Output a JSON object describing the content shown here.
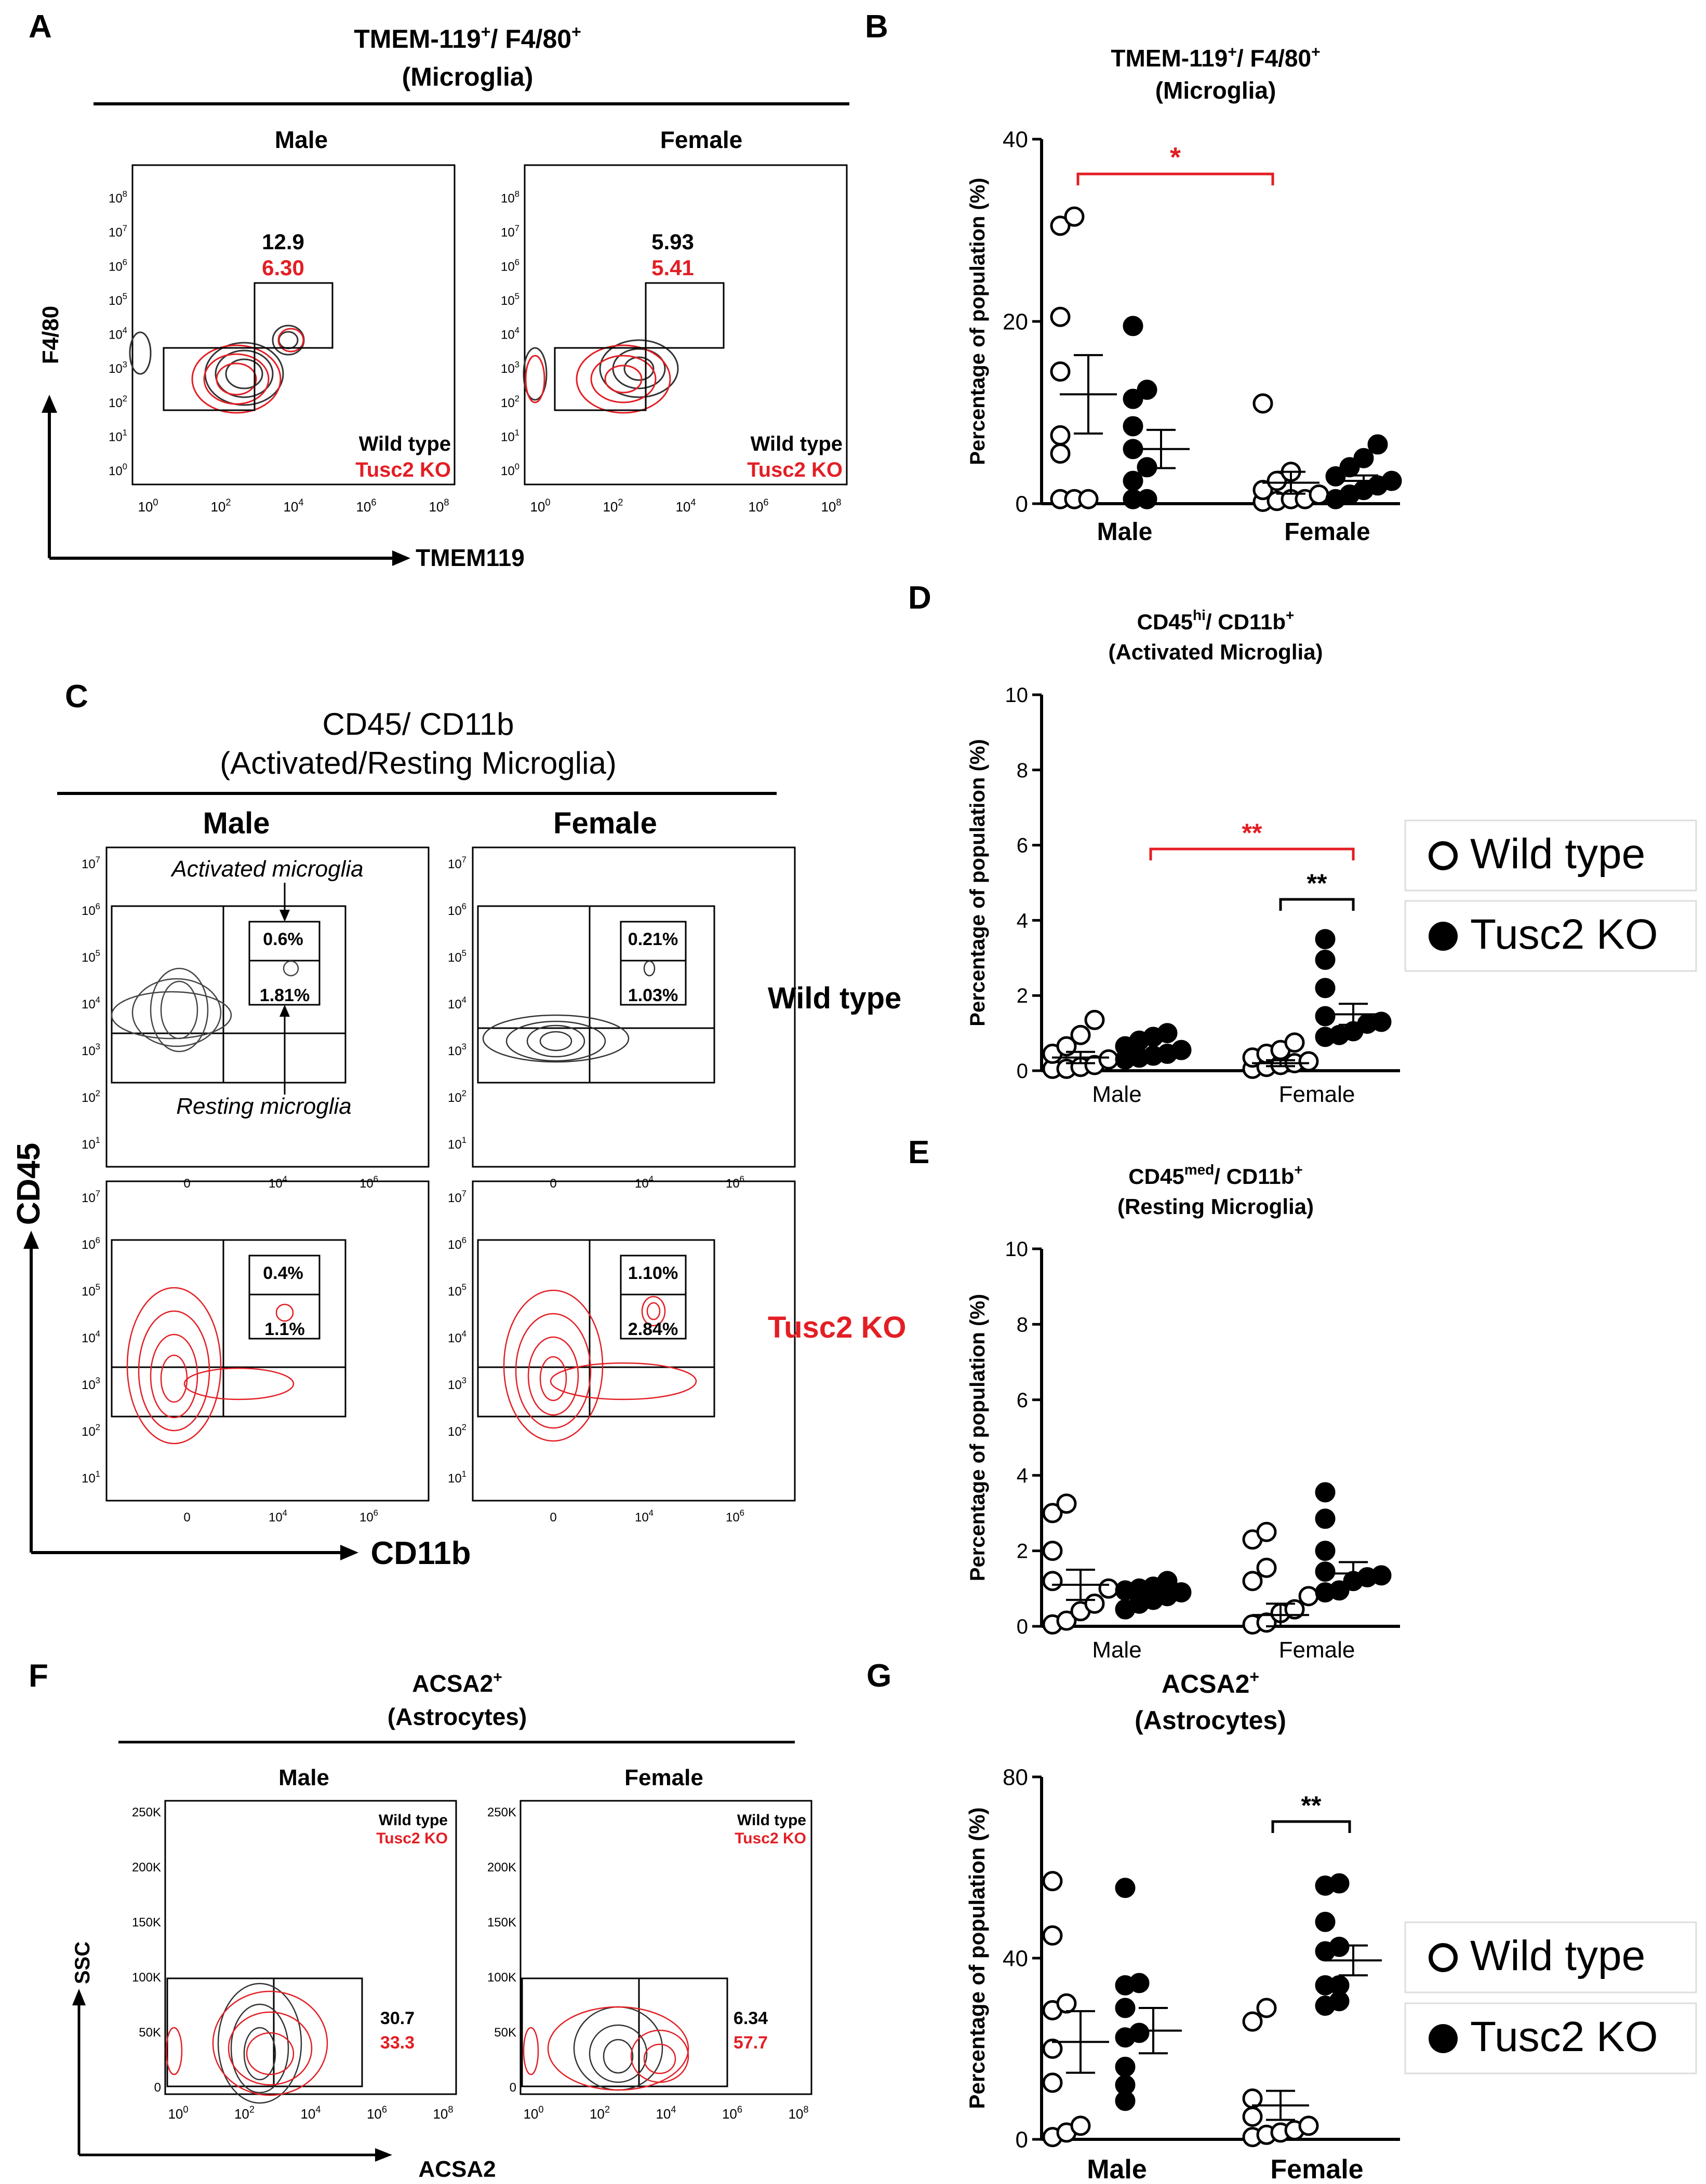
{
  "colors": {
    "wild_type": "#000000",
    "tusc2_ko": "#e31e24",
    "significance_red": "#e31e24",
    "significance_black": "#000000"
  },
  "legend": {
    "wild_type": "Wild type",
    "tusc2_ko": "Tusc2 KO"
  },
  "panels": {
    "A": {
      "letter": "A",
      "title_main": "TMEM-119",
      "title_sup1": "+",
      "title_mid": "/ F4/80",
      "title_sup2": "+",
      "subtitle": "(Microglia)",
      "male_label": "Male",
      "female_label": "Female",
      "xlabel": "TMEM119",
      "ylabel": "F4/80",
      "male_wt": "12.9",
      "male_ko": "6.30",
      "female_wt": "5.93",
      "female_ko": "5.41",
      "legend_wt": "Wild type",
      "legend_ko": "Tusc2 KO",
      "x_ticks": [
        "10",
        "10",
        "10",
        "10",
        "10"
      ],
      "x_tick_exps": [
        "0",
        "2",
        "4",
        "6",
        "8"
      ],
      "y_ticks": [
        "10",
        "10",
        "10",
        "10",
        "10",
        "10",
        "10",
        "10",
        "10"
      ],
      "y_tick_exps": [
        "0",
        "1",
        "2",
        "3",
        "4",
        "5",
        "6",
        "7",
        "8"
      ]
    },
    "C": {
      "letter": "C",
      "title": "CD45/ CD11b",
      "subtitle": "(Activated/Resting Microglia)",
      "male_label": "Male",
      "female_label": "Female",
      "row_wt": "Wild type",
      "row_ko": "Tusc2 KO",
      "xlabel": "CD11b",
      "ylabel": "CD45",
      "activated_label": "Activated microglia",
      "resting_label": "Resting microglia",
      "wt_male_top": "0.6%",
      "wt_male_bottom": "1.81%",
      "wt_female_top": "0.21%",
      "wt_female_bottom": "1.03%",
      "ko_male_top": "0.4%",
      "ko_male_bottom": "1.1%",
      "ko_female_top": "1.10%",
      "ko_female_bottom": "2.84%",
      "x_ticks": [
        "0",
        "10",
        "10"
      ],
      "x_tick_exps": [
        "",
        "4",
        "6"
      ],
      "y_ticks": [
        "10",
        "10",
        "10",
        "10",
        "10",
        "10",
        "10"
      ],
      "y_tick_exps": [
        "1",
        "2",
        "3",
        "4",
        "5",
        "6",
        "7"
      ]
    },
    "F": {
      "letter": "F",
      "title": "ACSA2",
      "title_sup": "+",
      "subtitle": "(Astrocytes)",
      "male_label": "Male",
      "female_label": "Female",
      "xlabel": "ACSA2",
      "ylabel": "SSC",
      "male_wt": "30.7",
      "male_ko": "33.3",
      "female_wt": "6.34",
      "female_ko": "57.7",
      "legend_wt": "Wild type",
      "legend_ko": "Tusc2 KO",
      "y_ticks": [
        "0",
        "50K",
        "100K",
        "150K",
        "200K",
        "250K"
      ],
      "x_ticks": [
        "10",
        "10",
        "10",
        "10",
        "10"
      ],
      "x_tick_exps": [
        "0",
        "2",
        "4",
        "6",
        "8"
      ]
    },
    "B": {
      "letter": "B",
      "title": "TMEM-119",
      "title_sup1": "+",
      "title_mid": "/ F4/80",
      "title_sup2": "+",
      "subtitle": "(Microglia)",
      "significance": "*"
    },
    "D": {
      "letter": "D",
      "title": "CD45",
      "title_sup1": "hi",
      "title_mid": "/ CD11b",
      "title_sup2": "+",
      "subtitle": "(Activated Microglia)",
      "sig_red": "**",
      "sig_black": "**"
    },
    "E": {
      "letter": "E",
      "title": "CD45",
      "title_sup1": "med",
      "title_mid": "/ CD11b",
      "title_sup2": "+",
      "subtitle": "(Resting Microglia)"
    },
    "G": {
      "letter": "G",
      "title": "ACSA2",
      "title_sup": "+",
      "subtitle": "(Astrocytes)",
      "sig_black": "**"
    }
  },
  "chart_data": [
    {
      "panel": "B",
      "type": "scatter",
      "ylabel": "Percentage of population (%)",
      "categories": [
        "Male",
        "Female"
      ],
      "ylim": [
        0,
        40
      ],
      "yticks": [
        0,
        20,
        40
      ],
      "series": [
        {
          "name": "Wild type",
          "group_values": [
            [
              31.5,
              30.5,
              20.5,
              14.5,
              7.5,
              0.5,
              0.5,
              0.5,
              5.5
            ],
            [
              11,
              3.5,
              2.5,
              1.5,
              1,
              0.5,
              0.5,
              0.3,
              0.2
            ]
          ],
          "means": [
            12.0,
            2.3
          ],
          "sem": [
            4.3,
            1.2
          ]
        },
        {
          "name": "Tusc2 KO",
          "group_values": [
            [
              19.5,
              12.5,
              11.5,
              8.5,
              6,
              4,
              2.5,
              0.5,
              0.5
            ],
            [
              6.5,
              5,
              4,
              3,
              2.5,
              2,
              1.5,
              1,
              0.5
            ]
          ],
          "means": [
            6.0,
            2.5
          ],
          "sem": [
            2.1,
            0.6
          ]
        }
      ]
    },
    {
      "panel": "D",
      "type": "scatter",
      "ylabel": "Percentage of population (%)",
      "categories": [
        "Male",
        "Female"
      ],
      "ylim": [
        0,
        10
      ],
      "yticks": [
        0,
        2,
        4,
        6,
        8,
        10
      ],
      "series": [
        {
          "name": "Wild type",
          "group_values": [
            [
              1.35,
              0.95,
              0.65,
              0.45,
              0.3,
              0.15,
              0.1,
              0.05,
              0.05
            ],
            [
              0.75,
              0.55,
              0.45,
              0.35,
              0.25,
              0.2,
              0.15,
              0.1,
              0.05
            ]
          ],
          "means": [
            0.35,
            0.2
          ],
          "sem": [
            0.15,
            0.08
          ]
        },
        {
          "name": "Tusc2 KO",
          "group_values": [
            [
              1.0,
              0.9,
              0.8,
              0.65,
              0.55,
              0.45,
              0.4,
              0.35,
              0.3
            ],
            [
              3.5,
              2.95,
              2.2,
              1.45,
              1.3,
              1.25,
              1.05,
              0.95,
              0.9
            ]
          ],
          "means": [
            0.45,
            1.5
          ],
          "sem": [
            0.08,
            0.28
          ]
        }
      ]
    },
    {
      "panel": "E",
      "type": "scatter",
      "ylabel": "Percentage of population (%)",
      "categories": [
        "Male",
        "Female"
      ],
      "ylim": [
        0,
        10
      ],
      "yticks": [
        0,
        2,
        4,
        6,
        8,
        10
      ],
      "series": [
        {
          "name": "Wild type",
          "group_values": [
            [
              3.25,
              3.0,
              2.0,
              1.2,
              1.0,
              0.6,
              0.4,
              0.15,
              0.05
            ],
            [
              2.5,
              2.3,
              1.55,
              1.2,
              0.8,
              0.45,
              0.35,
              0.1,
              0.05
            ]
          ],
          "means": [
            1.1,
            0.3
          ],
          "sem": [
            0.4,
            0.3
          ]
        },
        {
          "name": "Tusc2 KO",
          "group_values": [
            [
              1.2,
              1.05,
              1.0,
              0.95,
              0.9,
              0.8,
              0.7,
              0.6,
              0.45
            ],
            [
              3.55,
              2.85,
              2.0,
              1.45,
              1.35,
              1.3,
              1.2,
              0.95,
              0.9
            ]
          ],
          "means": [
            0.9,
            1.4
          ],
          "sem": [
            0.08,
            0.3
          ]
        }
      ]
    },
    {
      "panel": "G",
      "type": "scatter",
      "ylabel": "Percentage of population (%)",
      "categories": [
        "Male",
        "Female"
      ],
      "ylim": [
        0,
        80
      ],
      "yticks": [
        0,
        40,
        80
      ],
      "series": [
        {
          "name": "Wild type",
          "group_values": [
            [
              57,
              45,
              30,
              28.5,
              20,
              12.5,
              3,
              1.5,
              0.5
            ],
            [
              29,
              26,
              9,
              5,
              3,
              2,
              1.5,
              1,
              0.5
            ]
          ],
          "means": [
            21.5,
            7.5
          ],
          "sem": [
            6.8,
            3.2
          ]
        },
        {
          "name": "Tusc2 KO",
          "group_values": [
            [
              55.5,
              34.5,
              34,
              29,
              23.5,
              22.5,
              16,
              12,
              8.5
            ],
            [
              56.5,
              56,
              48,
              42.5,
              41.5,
              34,
              34,
              30.5,
              29.5
            ]
          ],
          "means": [
            24.0,
            39.5
          ],
          "sem": [
            5.0,
            3.3
          ]
        }
      ]
    }
  ]
}
